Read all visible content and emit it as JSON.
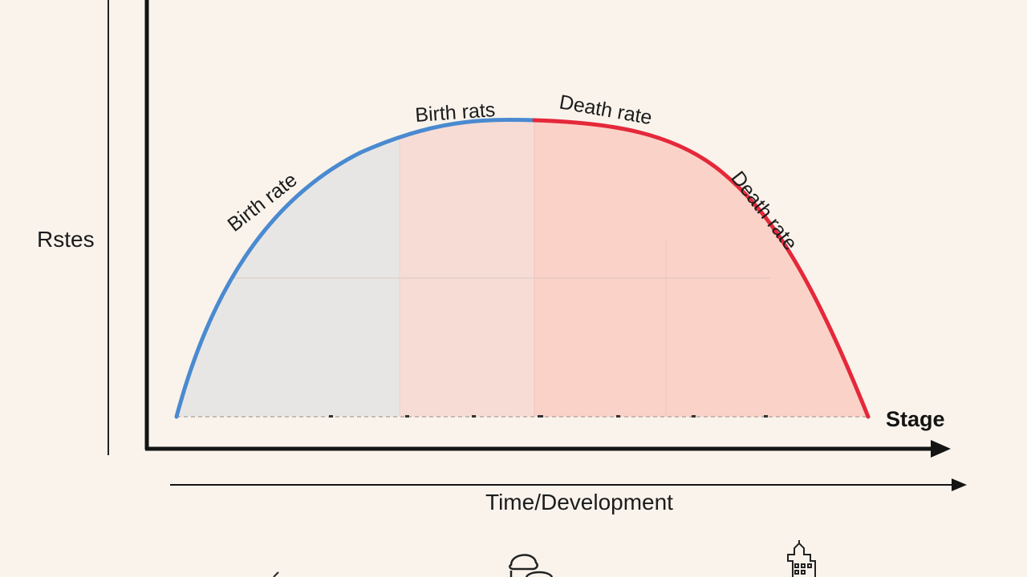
{
  "labels": {
    "y_axis": "Rstes",
    "x_axis_end": "Stage",
    "bottom_axis": "Time/Development",
    "curve_left": "Birth rate",
    "curve_top_left": "Birth rats",
    "curve_top_right": "Death rate",
    "curve_right": "Death rate"
  },
  "colors": {
    "background": "#f9f3ec",
    "birth_curve": "#4a8ad0",
    "death_curve": "#e5283a",
    "axis": "#141414",
    "region_1_fill": "#e8e6e4",
    "region_2_fill": "#f7dcd6",
    "region_3_fill": "#fbd2c8"
  },
  "icons": [
    "tree-icon",
    "factory-icon",
    "city-building-icon"
  ]
}
